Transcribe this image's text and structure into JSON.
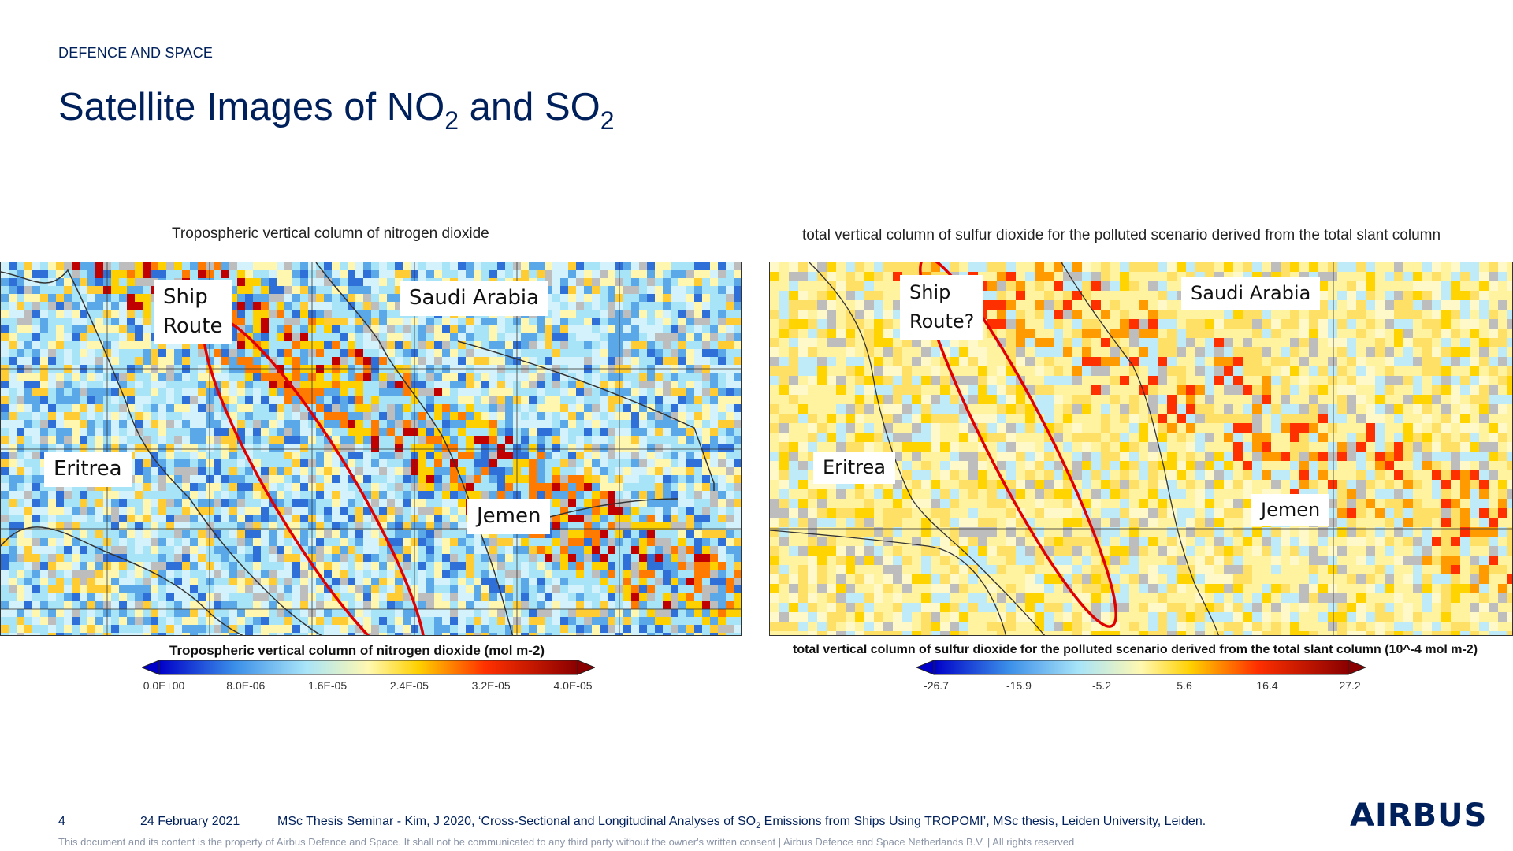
{
  "header": {
    "division": "DEFENCE AND SPACE",
    "title_prefix": "Satellite Images of NO",
    "title_sub1": "2",
    "title_middle": " and SO",
    "title_sub2": "2"
  },
  "left_panel": {
    "title": "Tropospheric vertical column of nitrogen dioxide",
    "labels": {
      "ship_route": "Ship\nRoute",
      "saudi_arabia": "Saudi Arabia",
      "eritrea": "Eritrea",
      "jemen": "Jemen"
    },
    "colorbar": {
      "title": "Tropospheric vertical column of nitrogen dioxide (mol m-2)",
      "ticks": [
        "0.0E+00",
        "8.0E-06",
        "1.6E-05",
        "2.4E-05",
        "3.2E-05",
        "4.0E-05"
      ]
    }
  },
  "right_panel": {
    "title": "total vertical column of sulfur dioxide for the polluted scenario derived from the total slant column",
    "labels": {
      "ship_route": "Ship\nRoute?",
      "saudi_arabia": "Saudi Arabia",
      "eritrea": "Eritrea",
      "jemen": "Jemen"
    },
    "colorbar": {
      "title": "total vertical column of sulfur dioxide for the polluted scenario derived from the total slant column (10^-4 mol m-2)",
      "ticks": [
        "-26.7",
        "-15.9",
        "-5.2",
        "5.6",
        "16.4",
        "27.2"
      ]
    }
  },
  "colors": {
    "brand": "#00205b",
    "highlight_ellipse": "#e00000",
    "no_data": "#bdbdbd"
  },
  "footer": {
    "page_number": "4",
    "date": "24 February 2021",
    "reference_prefix": "MSc Thesis Seminar - Kim, J 2020, ‘Cross-Sectional and Longitudinal Analyses of SO",
    "reference_sub": "2",
    "reference_suffix": " Emissions from Ships Using TROPOMI’, MSc thesis, Leiden University, Leiden.",
    "legal": "This document and its content is the property of Airbus Defence and Space. It shall not be communicated to any third party without the owner's written consent  |  Airbus Defence and Space Netherlands B.V.  |  All rights reserved",
    "logo_text": "AIRBUS"
  }
}
